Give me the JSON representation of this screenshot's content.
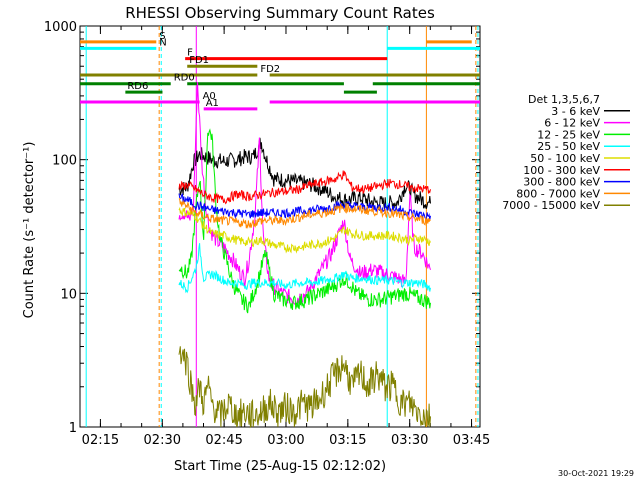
{
  "chart_data": {
    "type": "line",
    "title": "RHESSI Observing Summary Count Rates",
    "xlabel": "Start Time (25-Aug-15 02:12:02)",
    "ylabel": "Count Rate (s⁻¹ detector⁻¹)",
    "yscale": "log",
    "ylim": [
      1,
      1000
    ],
    "y_ticks": [
      {
        "value": 1,
        "label": "1"
      },
      {
        "value": 10,
        "label": "10"
      },
      {
        "value": 100,
        "label": "100"
      },
      {
        "value": 1000,
        "label": "1000"
      }
    ],
    "xlim_minutes": [
      -2.0,
      95.0
    ],
    "x_ticks": [
      {
        "minute": 2.95,
        "label": "02:15"
      },
      {
        "minute": 17.95,
        "label": "02:30"
      },
      {
        "minute": 32.95,
        "label": "02:45"
      },
      {
        "minute": 47.95,
        "label": "03:00"
      },
      {
        "minute": 62.95,
        "label": "03:15"
      },
      {
        "minute": 77.95,
        "label": "03:30"
      },
      {
        "minute": 92.95,
        "label": "03:45"
      }
    ],
    "legend": {
      "title": "Det 1,3,5,6,7",
      "placement": "right"
    },
    "series": [
      {
        "name": "3 - 6 keV",
        "color": "#000000",
        "points": [
          [
            22,
            60
          ],
          [
            24,
            62
          ],
          [
            25.5,
            95
          ],
          [
            27,
            110
          ],
          [
            30,
            100
          ],
          [
            33,
            97
          ],
          [
            36,
            100
          ],
          [
            38,
            105
          ],
          [
            40,
            105
          ],
          [
            42,
            135
          ],
          [
            43,
            105
          ],
          [
            45,
            72
          ],
          [
            48,
            70
          ],
          [
            51,
            68
          ],
          [
            54,
            65
          ],
          [
            57,
            60
          ],
          [
            60,
            52
          ],
          [
            63,
            50
          ],
          [
            66,
            52
          ],
          [
            69,
            48
          ],
          [
            72,
            47
          ],
          [
            75,
            48
          ],
          [
            77,
            65
          ],
          [
            79,
            55
          ],
          [
            81,
            50
          ],
          [
            83,
            47
          ]
        ]
      },
      {
        "name": "6 - 12 keV",
        "color": "#ff00ff",
        "points": [
          [
            22,
            40
          ],
          [
            23.5,
            40
          ],
          [
            24.5,
            35
          ],
          [
            25.5,
            45
          ],
          [
            26.5,
            380
          ],
          [
            27.5,
            100
          ],
          [
            28.5,
            45
          ],
          [
            29.5,
            30
          ],
          [
            31,
            25
          ],
          [
            33,
            22
          ],
          [
            35,
            18
          ],
          [
            37,
            14
          ],
          [
            38,
            13
          ],
          [
            39,
            18
          ],
          [
            40.5,
            40
          ],
          [
            41.5,
            140
          ],
          [
            42.5,
            25
          ],
          [
            44,
            12
          ],
          [
            47,
            10
          ],
          [
            50,
            9
          ],
          [
            53,
            10
          ],
          [
            56,
            14
          ],
          [
            59,
            20
          ],
          [
            62,
            35
          ],
          [
            63.5,
            18
          ],
          [
            66,
            14
          ],
          [
            69,
            15
          ],
          [
            72,
            14
          ],
          [
            75,
            13
          ],
          [
            77,
            12
          ],
          [
            78,
            55
          ],
          [
            79,
            22
          ],
          [
            81,
            20
          ],
          [
            83,
            15
          ]
        ]
      },
      {
        "name": "12 - 25 keV",
        "color": "#00ee00",
        "points": [
          [
            22,
            16
          ],
          [
            24,
            14
          ],
          [
            25,
            18
          ],
          [
            26,
            40
          ],
          [
            27,
            75
          ],
          [
            28,
            25
          ],
          [
            29,
            170
          ],
          [
            30,
            150
          ],
          [
            31,
            45
          ],
          [
            32,
            25
          ],
          [
            33,
            20
          ],
          [
            35,
            12
          ],
          [
            37,
            9
          ],
          [
            39,
            8
          ],
          [
            41,
            12
          ],
          [
            43,
            20
          ],
          [
            45,
            10
          ],
          [
            47,
            9
          ],
          [
            50,
            8.5
          ],
          [
            53,
            9
          ],
          [
            56,
            10
          ],
          [
            59,
            11
          ],
          [
            62,
            13
          ],
          [
            63.5,
            12
          ],
          [
            65,
            10
          ],
          [
            68,
            9
          ],
          [
            71,
            9
          ],
          [
            74,
            9.5
          ],
          [
            77,
            10
          ],
          [
            79,
            9.5
          ],
          [
            81,
            9
          ],
          [
            83,
            8.5
          ]
        ]
      },
      {
        "name": "25 - 50 keV",
        "color": "#00ffff",
        "points": [
          [
            22,
            12
          ],
          [
            24,
            11
          ],
          [
            26,
            15
          ],
          [
            27,
            22
          ],
          [
            28,
            13
          ],
          [
            30,
            14
          ],
          [
            32,
            13
          ],
          [
            34,
            12
          ],
          [
            36,
            12
          ],
          [
            38,
            11.5
          ],
          [
            40,
            12
          ],
          [
            42,
            12
          ],
          [
            45,
            12
          ],
          [
            48,
            11.5
          ],
          [
            51,
            12
          ],
          [
            54,
            12
          ],
          [
            57,
            12.5
          ],
          [
            60,
            13
          ],
          [
            62,
            14
          ],
          [
            64,
            13
          ],
          [
            67,
            13
          ],
          [
            70,
            12.5
          ],
          [
            73,
            12.5
          ],
          [
            76,
            12
          ],
          [
            78,
            12
          ],
          [
            80,
            12
          ],
          [
            82,
            11.5
          ],
          [
            83,
            11
          ]
        ]
      },
      {
        "name": "50 - 100 keV",
        "color": "#dddd00",
        "points": [
          [
            22,
            42
          ],
          [
            24,
            40
          ],
          [
            26,
            38
          ],
          [
            28,
            32
          ],
          [
            30,
            28
          ],
          [
            33,
            27
          ],
          [
            36,
            25
          ],
          [
            39,
            24
          ],
          [
            42,
            25
          ],
          [
            45,
            23
          ],
          [
            48,
            22
          ],
          [
            51,
            22
          ],
          [
            54,
            23
          ],
          [
            57,
            24
          ],
          [
            60,
            26
          ],
          [
            62,
            30
          ],
          [
            64,
            28
          ],
          [
            67,
            27
          ],
          [
            70,
            27
          ],
          [
            73,
            27
          ],
          [
            76,
            26
          ],
          [
            78,
            25
          ],
          [
            80,
            26
          ],
          [
            82,
            25
          ],
          [
            83,
            24
          ]
        ]
      },
      {
        "name": "100 - 300 keV",
        "color": "#ff0000",
        "points": [
          [
            22,
            62
          ],
          [
            24,
            65
          ],
          [
            26,
            60
          ],
          [
            28,
            55
          ],
          [
            30,
            52
          ],
          [
            33,
            50
          ],
          [
            36,
            55
          ],
          [
            39,
            53
          ],
          [
            42,
            55
          ],
          [
            45,
            57
          ],
          [
            48,
            58
          ],
          [
            51,
            60
          ],
          [
            54,
            65
          ],
          [
            57,
            68
          ],
          [
            60,
            72
          ],
          [
            62,
            78
          ],
          [
            64,
            62
          ],
          [
            67,
            60
          ],
          [
            70,
            63
          ],
          [
            73,
            67
          ],
          [
            76,
            65
          ],
          [
            78,
            62
          ],
          [
            80,
            61
          ],
          [
            82,
            60
          ],
          [
            83,
            60
          ]
        ]
      },
      {
        "name": "300 - 800 keV",
        "color": "#0000ff",
        "points": [
          [
            22,
            52
          ],
          [
            24,
            50
          ],
          [
            26,
            46
          ],
          [
            28,
            44
          ],
          [
            30,
            42
          ],
          [
            33,
            41
          ],
          [
            36,
            40
          ],
          [
            39,
            39
          ],
          [
            42,
            40
          ],
          [
            45,
            40
          ],
          [
            48,
            40
          ],
          [
            51,
            41
          ],
          [
            54,
            42
          ],
          [
            57,
            43
          ],
          [
            60,
            45
          ],
          [
            62,
            46
          ],
          [
            64,
            45
          ],
          [
            67,
            44
          ],
          [
            70,
            44
          ],
          [
            73,
            44
          ],
          [
            76,
            42
          ],
          [
            78,
            40
          ],
          [
            80,
            39
          ],
          [
            82,
            38
          ],
          [
            83,
            38
          ]
        ]
      },
      {
        "name": "800 - 7000 keV",
        "color": "#ff8800",
        "points": [
          [
            22,
            48
          ],
          [
            24,
            45
          ],
          [
            26,
            40
          ],
          [
            28,
            38
          ],
          [
            30,
            36
          ],
          [
            33,
            35
          ],
          [
            36,
            34
          ],
          [
            39,
            33
          ],
          [
            42,
            35
          ],
          [
            45,
            35
          ],
          [
            48,
            35
          ],
          [
            51,
            37
          ],
          [
            54,
            39
          ],
          [
            57,
            40
          ],
          [
            60,
            42
          ],
          [
            62,
            44
          ],
          [
            64,
            43
          ],
          [
            67,
            42
          ],
          [
            70,
            41
          ],
          [
            73,
            40
          ],
          [
            76,
            38
          ],
          [
            78,
            37
          ],
          [
            80,
            36
          ],
          [
            82,
            35
          ],
          [
            83,
            35
          ]
        ]
      },
      {
        "name": "7000 - 15000 keV",
        "color": "#808000",
        "points": [
          [
            22,
            4
          ],
          [
            23,
            3.5
          ],
          [
            24,
            3
          ],
          [
            25,
            2
          ],
          [
            26,
            1.5
          ],
          [
            27,
            2
          ],
          [
            28,
            1.5
          ],
          [
            29,
            2
          ],
          [
            30,
            1.5
          ],
          [
            32,
            1.2
          ],
          [
            34,
            1.5
          ],
          [
            36,
            1.2
          ],
          [
            38,
            1.3
          ],
          [
            40,
            1.2
          ],
          [
            42,
            1.3
          ],
          [
            44,
            1.5
          ],
          [
            46,
            1.3
          ],
          [
            48,
            1.4
          ],
          [
            50,
            1.3
          ],
          [
            52,
            1.5
          ],
          [
            54,
            1.4
          ],
          [
            56,
            1.6
          ],
          [
            58,
            2
          ],
          [
            60,
            2.5
          ],
          [
            62,
            3
          ],
          [
            64,
            2
          ],
          [
            66,
            2.5
          ],
          [
            68,
            2
          ],
          [
            70,
            2.5
          ],
          [
            72,
            2
          ],
          [
            74,
            2
          ],
          [
            76,
            1.5
          ],
          [
            78,
            1.5
          ],
          [
            80,
            1.3
          ],
          [
            82,
            1.2
          ],
          [
            83,
            1.2
          ]
        ]
      }
    ],
    "state_bars": [
      {
        "label": "S",
        "color": "#ff8800",
        "value": 760,
        "intervals": [
          [
            -2,
            16.5
          ],
          [
            82,
            93
          ]
        ]
      },
      {
        "label": "N",
        "color": "#00ffff",
        "value": 680,
        "intervals": [
          [
            -2,
            16.5
          ],
          [
            72.5,
            95
          ]
        ]
      },
      {
        "label": "F",
        "color": "#ff0000",
        "value": 570,
        "intervals": [
          [
            23.5,
            72.5
          ]
        ]
      },
      {
        "label": "FD1",
        "color": "#808000",
        "value": 500,
        "intervals": [
          [
            24,
            41
          ]
        ]
      },
      {
        "label": "FD2",
        "color": "#808000",
        "value": 430,
        "intervals": [
          [
            -2,
            41
          ],
          [
            44,
            95
          ]
        ]
      },
      {
        "label": "RD0",
        "color": "#008000",
        "value": 370,
        "intervals": [
          [
            -2,
            20
          ],
          [
            24,
            62
          ],
          [
            69,
            95
          ]
        ]
      },
      {
        "label": "RD6",
        "color": "#008000",
        "value": 320,
        "intervals": [
          [
            9,
            18
          ],
          [
            62,
            70
          ]
        ]
      },
      {
        "label": "A0",
        "color": "#ff00ff",
        "value": 270,
        "intervals": [
          [
            -2,
            27
          ],
          [
            44,
            95
          ]
        ]
      },
      {
        "label": "A1",
        "color": "#ff00ff",
        "value": 240,
        "intervals": [
          [
            28,
            41
          ]
        ]
      }
    ],
    "vertical_markers": [
      {
        "minute": -0.5,
        "color": "#00ffff",
        "style": "solid"
      },
      {
        "minute": 17.2,
        "color": "#ff8800",
        "style": "dashed"
      },
      {
        "minute": 17.7,
        "color": "#00ffff",
        "style": "dashed"
      },
      {
        "minute": 26.2,
        "color": "#ff00ff",
        "style": "solid"
      },
      {
        "minute": 72.5,
        "color": "#00ffff",
        "style": "solid"
      },
      {
        "minute": 82.0,
        "color": "#ff8800",
        "style": "solid"
      },
      {
        "minute": 94.5,
        "color": "#00ffff",
        "style": "dashed"
      },
      {
        "minute": 94.0,
        "color": "#ff8800",
        "style": "dashed"
      }
    ],
    "footer_date": "30-Oct-2021 19:29"
  }
}
